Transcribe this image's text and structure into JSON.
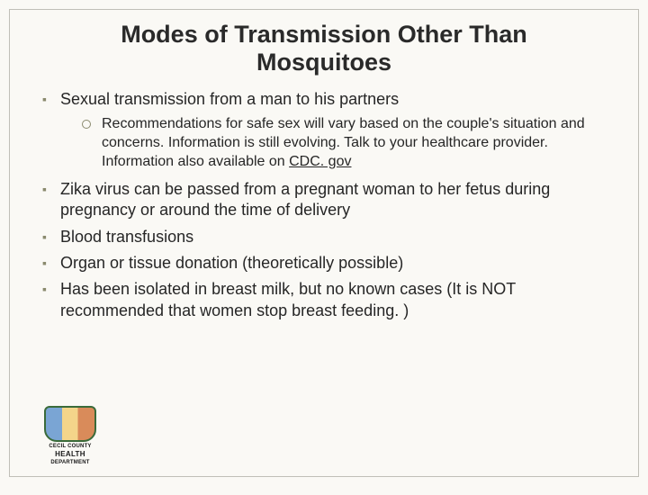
{
  "title": "Modes of Transmission Other Than Mosquitoes",
  "bullets": [
    {
      "text": "Sexual transmission from a man to his partners",
      "sub": [
        {
          "prefix": "Recommendations for safe sex will vary based on the couple's situation and concerns.  Information is still evolving. Talk to your healthcare provider.  Information also available on ",
          "link": "CDC. gov"
        }
      ]
    },
    {
      "text": "Zika virus can be passed from a pregnant woman to her fetus during pregnancy or around the time of delivery"
    },
    {
      "text": "Blood transfusions"
    },
    {
      "text": "Organ or tissue donation (theoretically possible)"
    },
    {
      "text": "Has been isolated in breast milk, but no known cases  (It is NOT recommended that women stop breast feeding. )"
    }
  ],
  "logo": {
    "line1": "CECIL COUNTY",
    "line2": "HEALTH",
    "line3": "DEPARTMENT"
  },
  "colors": {
    "background": "#faf9f5",
    "border": "#c0bfb8",
    "text": "#262626",
    "bullet": "#8a8a6e"
  }
}
